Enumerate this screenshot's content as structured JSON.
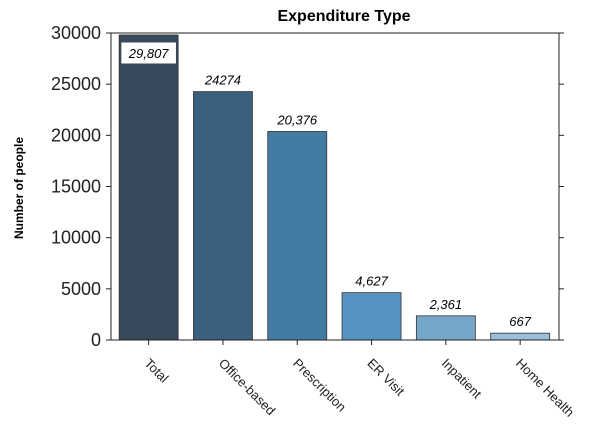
{
  "chart_data": {
    "type": "bar",
    "title": "Expenditure Type",
    "xlabel": "",
    "ylabel": "Number of people",
    "ylim": [
      0,
      30000
    ],
    "y_ticks": [
      0,
      5000,
      10000,
      15000,
      20000,
      25000,
      30000
    ],
    "y_tick_labels": [
      "0",
      "5000",
      "10000",
      "15000",
      "20000",
      "25000",
      "30000"
    ],
    "categories": [
      "Total",
      "Office-based",
      "Prescription",
      "ER Visit",
      "Inpatient",
      "Home Health"
    ],
    "values": [
      29807,
      24274,
      20376,
      4627,
      2361,
      667
    ],
    "value_labels": [
      "29,807",
      "24274",
      "20,376",
      "4,627",
      "2,361",
      "667"
    ],
    "bar_colors": [
      "#37495a",
      "#3b5f7e",
      "#427ca2",
      "#5594c0",
      "#76a7c9",
      "#9bbfda"
    ],
    "grid": false,
    "legend": "none"
  }
}
